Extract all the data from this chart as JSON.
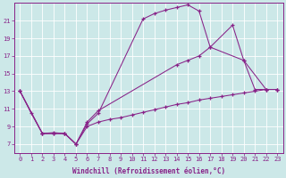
{
  "background_color": "#cce8e8",
  "grid_color": "#ffffff",
  "line_color": "#882288",
  "marker": "+",
  "xlabel": "Windchill (Refroidissement éolien,°C)",
  "xlim": [
    -0.5,
    23.5
  ],
  "ylim": [
    6.0,
    23.0
  ],
  "yticks": [
    7,
    9,
    11,
    13,
    15,
    17,
    19,
    21
  ],
  "xticks": [
    0,
    1,
    2,
    3,
    4,
    5,
    6,
    7,
    8,
    9,
    10,
    11,
    12,
    13,
    14,
    15,
    16,
    17,
    18,
    19,
    20,
    21,
    22,
    23
  ],
  "series": [
    {
      "x": [
        0,
        1,
        2,
        3,
        4,
        5,
        6,
        7,
        11,
        12,
        13,
        14,
        15,
        16,
        17,
        20,
        21,
        22,
        23
      ],
      "y": [
        13,
        10.5,
        8.2,
        8.3,
        8.2,
        7.0,
        9.3,
        10.5,
        21.2,
        21.8,
        22.2,
        22.5,
        22.8,
        22.1,
        18.0,
        16.5,
        13.2,
        13.2,
        13.2
      ]
    },
    {
      "x": [
        0,
        2,
        3,
        4,
        5,
        6,
        7,
        14,
        15,
        16,
        17,
        19,
        20,
        22,
        23
      ],
      "y": [
        13,
        8.2,
        8.2,
        8.2,
        7.0,
        9.5,
        10.8,
        16.0,
        16.5,
        17.0,
        18.0,
        20.5,
        16.5,
        13.2,
        13.2
      ]
    },
    {
      "x": [
        0,
        2,
        3,
        4,
        5,
        6,
        7,
        8,
        9,
        10,
        11,
        12,
        13,
        14,
        15,
        16,
        17,
        18,
        19,
        20,
        21,
        22,
        23
      ],
      "y": [
        13,
        8.2,
        8.2,
        8.2,
        7.0,
        9.0,
        9.5,
        9.8,
        10.0,
        10.3,
        10.6,
        10.9,
        11.2,
        11.5,
        11.7,
        12.0,
        12.2,
        12.4,
        12.6,
        12.8,
        13.0,
        13.2,
        13.2
      ]
    }
  ]
}
